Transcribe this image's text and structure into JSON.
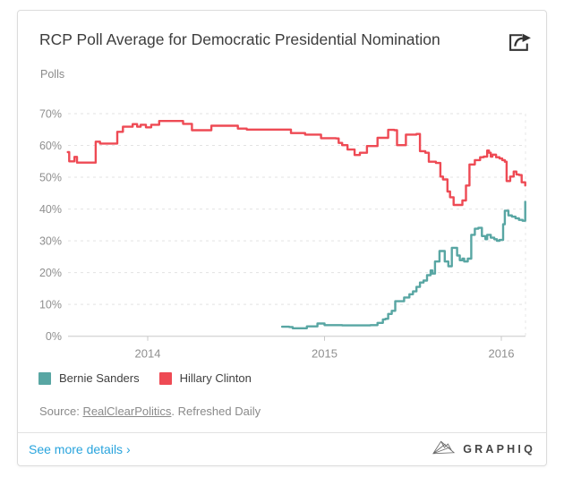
{
  "card": {
    "title": "RCP Poll Average for Democratic Presidential Nomination",
    "subtitle": "Polls"
  },
  "chart_data": {
    "type": "line",
    "title": "RCP Poll Average for Democratic Presidential Nomination",
    "ylabel": "Polls",
    "grid": "horizontal-dashed",
    "legend_position": "bottom-left",
    "x_axis": {
      "ticks": [
        2014,
        2015,
        2016
      ],
      "labels": [
        "2014",
        "2015",
        "2016"
      ],
      "range": [
        2013.55,
        2016.14
      ]
    },
    "y_axis": {
      "ticks": [
        0,
        10,
        20,
        30,
        40,
        50,
        60,
        70
      ],
      "labels": [
        "0%",
        "10%",
        "20%",
        "30%",
        "40%",
        "50%",
        "60%",
        "70%"
      ],
      "range": [
        0,
        70
      ],
      "unit": "%"
    },
    "series": [
      {
        "name": "Hillary Clinton",
        "color": "#ee4a54",
        "points": [
          [
            2013.548,
            57.9
          ],
          [
            2013.556,
            55.0
          ],
          [
            2013.578,
            55.0
          ],
          [
            2013.586,
            56.4
          ],
          [
            2013.6,
            54.6
          ],
          [
            2013.698,
            54.6
          ],
          [
            2013.706,
            61.2
          ],
          [
            2013.73,
            60.6
          ],
          [
            2013.815,
            60.6
          ],
          [
            2013.828,
            64.3
          ],
          [
            2013.86,
            65.9
          ],
          [
            2013.915,
            66.7
          ],
          [
            2013.94,
            65.9
          ],
          [
            2013.96,
            66.5
          ],
          [
            2013.99,
            65.7
          ],
          [
            2014.02,
            66.5
          ],
          [
            2014.065,
            67.7
          ],
          [
            2014.19,
            67.7
          ],
          [
            2014.2,
            66.8
          ],
          [
            2014.24,
            66.8
          ],
          [
            2014.25,
            64.8
          ],
          [
            2014.34,
            64.8
          ],
          [
            2014.36,
            66.2
          ],
          [
            2014.45,
            66.2
          ],
          [
            2014.51,
            65.3
          ],
          [
            2014.56,
            65.0
          ],
          [
            2014.76,
            65.0
          ],
          [
            2014.81,
            63.9
          ],
          [
            2014.89,
            63.4
          ],
          [
            2014.98,
            62.3
          ],
          [
            2015.065,
            62.2
          ],
          [
            2015.08,
            60.8
          ],
          [
            2015.1,
            60.1
          ],
          [
            2015.13,
            58.7
          ],
          [
            2015.17,
            57.0
          ],
          [
            2015.2,
            57.7
          ],
          [
            2015.24,
            59.8
          ],
          [
            2015.3,
            62.4
          ],
          [
            2015.36,
            64.9
          ],
          [
            2015.395,
            64.8
          ],
          [
            2015.41,
            60.1
          ],
          [
            2015.46,
            63.4
          ],
          [
            2015.52,
            63.6
          ],
          [
            2015.54,
            58.2
          ],
          [
            2015.57,
            57.7
          ],
          [
            2015.59,
            54.9
          ],
          [
            2015.63,
            54.5
          ],
          [
            2015.655,
            50.2
          ],
          [
            2015.67,
            49.3
          ],
          [
            2015.695,
            45.5
          ],
          [
            2015.71,
            43.7
          ],
          [
            2015.73,
            41.3
          ],
          [
            2015.76,
            41.3
          ],
          [
            2015.78,
            42.7
          ],
          [
            2015.8,
            47.4
          ],
          [
            2015.82,
            54.0
          ],
          [
            2015.85,
            55.4
          ],
          [
            2015.88,
            56.3
          ],
          [
            2015.9,
            56.5
          ],
          [
            2015.92,
            58.4
          ],
          [
            2015.93,
            57.7
          ],
          [
            2015.94,
            56.5
          ],
          [
            2015.95,
            57.1
          ],
          [
            2015.97,
            56.3
          ],
          [
            2015.99,
            55.9
          ],
          [
            2016.005,
            55.4
          ],
          [
            2016.02,
            54.9
          ],
          [
            2016.03,
            48.8
          ],
          [
            2016.05,
            50.2
          ],
          [
            2016.07,
            51.8
          ],
          [
            2016.085,
            50.9
          ],
          [
            2016.1,
            50.7
          ],
          [
            2016.115,
            48.4
          ],
          [
            2016.135,
            47.4
          ]
        ]
      },
      {
        "name": "Bernie Sanders",
        "color": "#58a6a3",
        "points": [
          [
            2014.76,
            3.0
          ],
          [
            2014.8,
            2.9
          ],
          [
            2014.82,
            2.5
          ],
          [
            2014.9,
            3.1
          ],
          [
            2014.96,
            4.0
          ],
          [
            2015.0,
            3.5
          ],
          [
            2015.1,
            3.4
          ],
          [
            2015.2,
            3.4
          ],
          [
            2015.26,
            3.5
          ],
          [
            2015.3,
            4.2
          ],
          [
            2015.33,
            5.3
          ],
          [
            2015.345,
            5.5
          ],
          [
            2015.36,
            7.0
          ],
          [
            2015.38,
            8.0
          ],
          [
            2015.4,
            11.0
          ],
          [
            2015.45,
            12.2
          ],
          [
            2015.48,
            13.2
          ],
          [
            2015.5,
            14.1
          ],
          [
            2015.52,
            15.5
          ],
          [
            2015.54,
            16.9
          ],
          [
            2015.56,
            17.5
          ],
          [
            2015.58,
            19.2
          ],
          [
            2015.6,
            20.7
          ],
          [
            2015.61,
            19.7
          ],
          [
            2015.625,
            23.5
          ],
          [
            2015.65,
            26.8
          ],
          [
            2015.68,
            23.5
          ],
          [
            2015.7,
            22.0
          ],
          [
            2015.72,
            27.8
          ],
          [
            2015.75,
            25.4
          ],
          [
            2015.765,
            23.9
          ],
          [
            2015.78,
            24.4
          ],
          [
            2015.79,
            23.5
          ],
          [
            2015.81,
            24.4
          ],
          [
            2015.83,
            31.9
          ],
          [
            2015.85,
            33.8
          ],
          [
            2015.87,
            34.1
          ],
          [
            2015.89,
            31.5
          ],
          [
            2015.91,
            30.5
          ],
          [
            2015.92,
            31.9
          ],
          [
            2015.94,
            31.0
          ],
          [
            2015.96,
            30.5
          ],
          [
            2015.975,
            30.0
          ],
          [
            2015.99,
            30.3
          ],
          [
            2016.01,
            35.2
          ],
          [
            2016.02,
            39.5
          ],
          [
            2016.04,
            38.0
          ],
          [
            2016.06,
            37.6
          ],
          [
            2016.08,
            37.1
          ],
          [
            2016.1,
            36.6
          ],
          [
            2016.12,
            36.3
          ],
          [
            2016.135,
            42.3
          ]
        ]
      }
    ]
  },
  "legend": {
    "items": [
      {
        "label": "Bernie Sanders",
        "color": "#58a6a3"
      },
      {
        "label": "Hillary Clinton",
        "color": "#ee4a54"
      }
    ]
  },
  "source": {
    "prefix": "Source:",
    "link_text": "RealClearPolitics",
    "suffix": ". Refreshed Daily"
  },
  "footer": {
    "details_link": "See more details ›",
    "brand": "GRAPHIQ"
  },
  "colors": {
    "accent_blue": "#29a4dd",
    "sanders_teal": "#58a6a3",
    "clinton_red": "#ee4a54"
  }
}
